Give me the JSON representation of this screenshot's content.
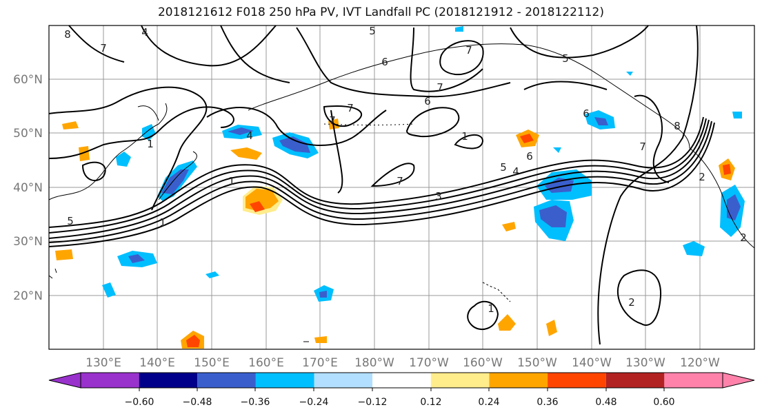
{
  "title": "2018121612 F018 250 hPa PV, IVT Landfall PC (2018121912 - 2018122112)",
  "map": {
    "lon_labels": [
      "130°E",
      "140°E",
      "150°E",
      "160°E",
      "170°E",
      "180°W",
      "170°W",
      "160°W",
      "150°W",
      "140°W",
      "130°W",
      "120°W"
    ],
    "lat_labels": [
      "60°N",
      "50°N",
      "40°N",
      "30°N",
      "20°N"
    ],
    "grid": true
  },
  "pv_contour_labels": [
    "8",
    "7",
    "4",
    "5",
    "6",
    "7",
    "6",
    "7",
    "5",
    "7",
    "1",
    "4",
    "1",
    "5",
    "1",
    "7",
    "7",
    "6",
    "5",
    "4",
    "3",
    "6",
    "7",
    "8",
    "2",
    "1",
    "2",
    "2",
    "1"
  ],
  "colorbar": {
    "ticks": [
      "−0.60",
      "−0.48",
      "−0.36",
      "−0.24",
      "−0.12",
      "0.12",
      "0.24",
      "0.36",
      "0.48",
      "0.60"
    ],
    "colors": [
      "#9932cc",
      "#00008b",
      "#3a5fcd",
      "#00bfff",
      "#b2dfff",
      "#ffffff",
      "#ffec8b",
      "#ffa500",
      "#ff4500",
      "#b22222",
      "#ff82ab"
    ],
    "extend": "both"
  }
}
